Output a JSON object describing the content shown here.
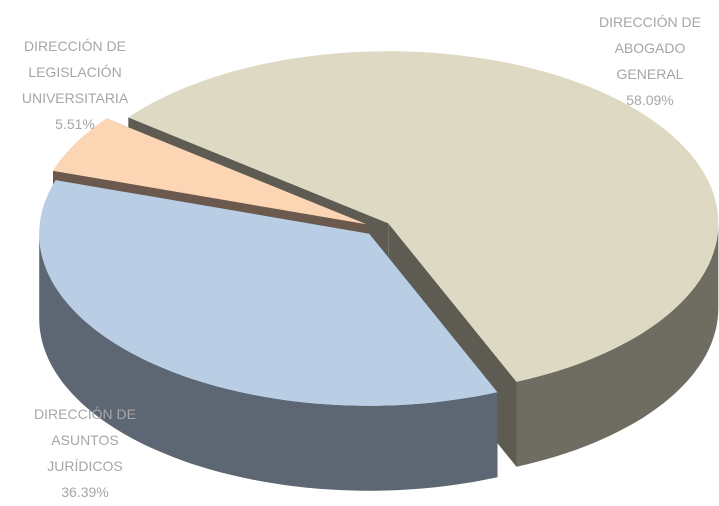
{
  "chart_data": {
    "type": "pie3d",
    "categories": [
      "DIRECCIÓN DE ABOGADO GENERAL",
      "DIRECCIÓN DE ASUNTOS JURÍDICOS",
      "DIRECCIÓN DE LEGISLACIÓN UNIVERSITARIA"
    ],
    "values": [
      58.09,
      36.39,
      5.51
    ],
    "value_labels": [
      "58.09%",
      "36.39%",
      "5.51%"
    ],
    "colors": [
      "#ddd9c3",
      "#b9cde5",
      "#fcd5b5"
    ]
  }
}
